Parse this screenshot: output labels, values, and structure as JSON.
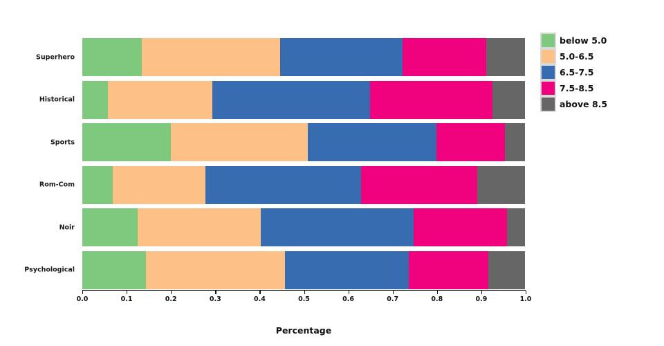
{
  "chart_data": {
    "type": "bar",
    "orientation": "horizontal_stacked",
    "categories": [
      "Superhero",
      "Historical",
      "Sports",
      "Rom-Com",
      "Noir",
      "Psychological"
    ],
    "series": [
      {
        "name": "below 5.0",
        "color": "#7fc97f",
        "values": [
          0.135,
          0.058,
          0.2,
          0.068,
          0.125,
          0.143
        ]
      },
      {
        "name": "5.0-6.5",
        "color": "#fdc086",
        "values": [
          0.312,
          0.235,
          0.31,
          0.21,
          0.278,
          0.315
        ]
      },
      {
        "name": "6.5-7.5",
        "color": "#386cb0",
        "values": [
          0.276,
          0.357,
          0.29,
          0.352,
          0.346,
          0.28
        ]
      },
      {
        "name": "7.5-8.5",
        "color": "#f0027f",
        "values": [
          0.19,
          0.277,
          0.155,
          0.262,
          0.211,
          0.18
        ]
      },
      {
        "name": "above 8.5",
        "color": "#666666",
        "values": [
          0.087,
          0.073,
          0.045,
          0.108,
          0.04,
          0.082
        ]
      }
    ],
    "title": "",
    "xlabel": "Percentage",
    "ylabel": "",
    "xlim": [
      0.0,
      1.0
    ],
    "x_ticks": [
      "0.0",
      "0.1",
      "0.2",
      "0.3",
      "0.4",
      "0.5",
      "0.6",
      "0.7",
      "0.8",
      "0.9",
      "1.0"
    ],
    "grid": false,
    "legend_position": "top-right",
    "legend_background": "#d9d9d9",
    "axis_color": "#111111",
    "text_color": "#1a1a1a",
    "background_color": "#ffffff"
  }
}
